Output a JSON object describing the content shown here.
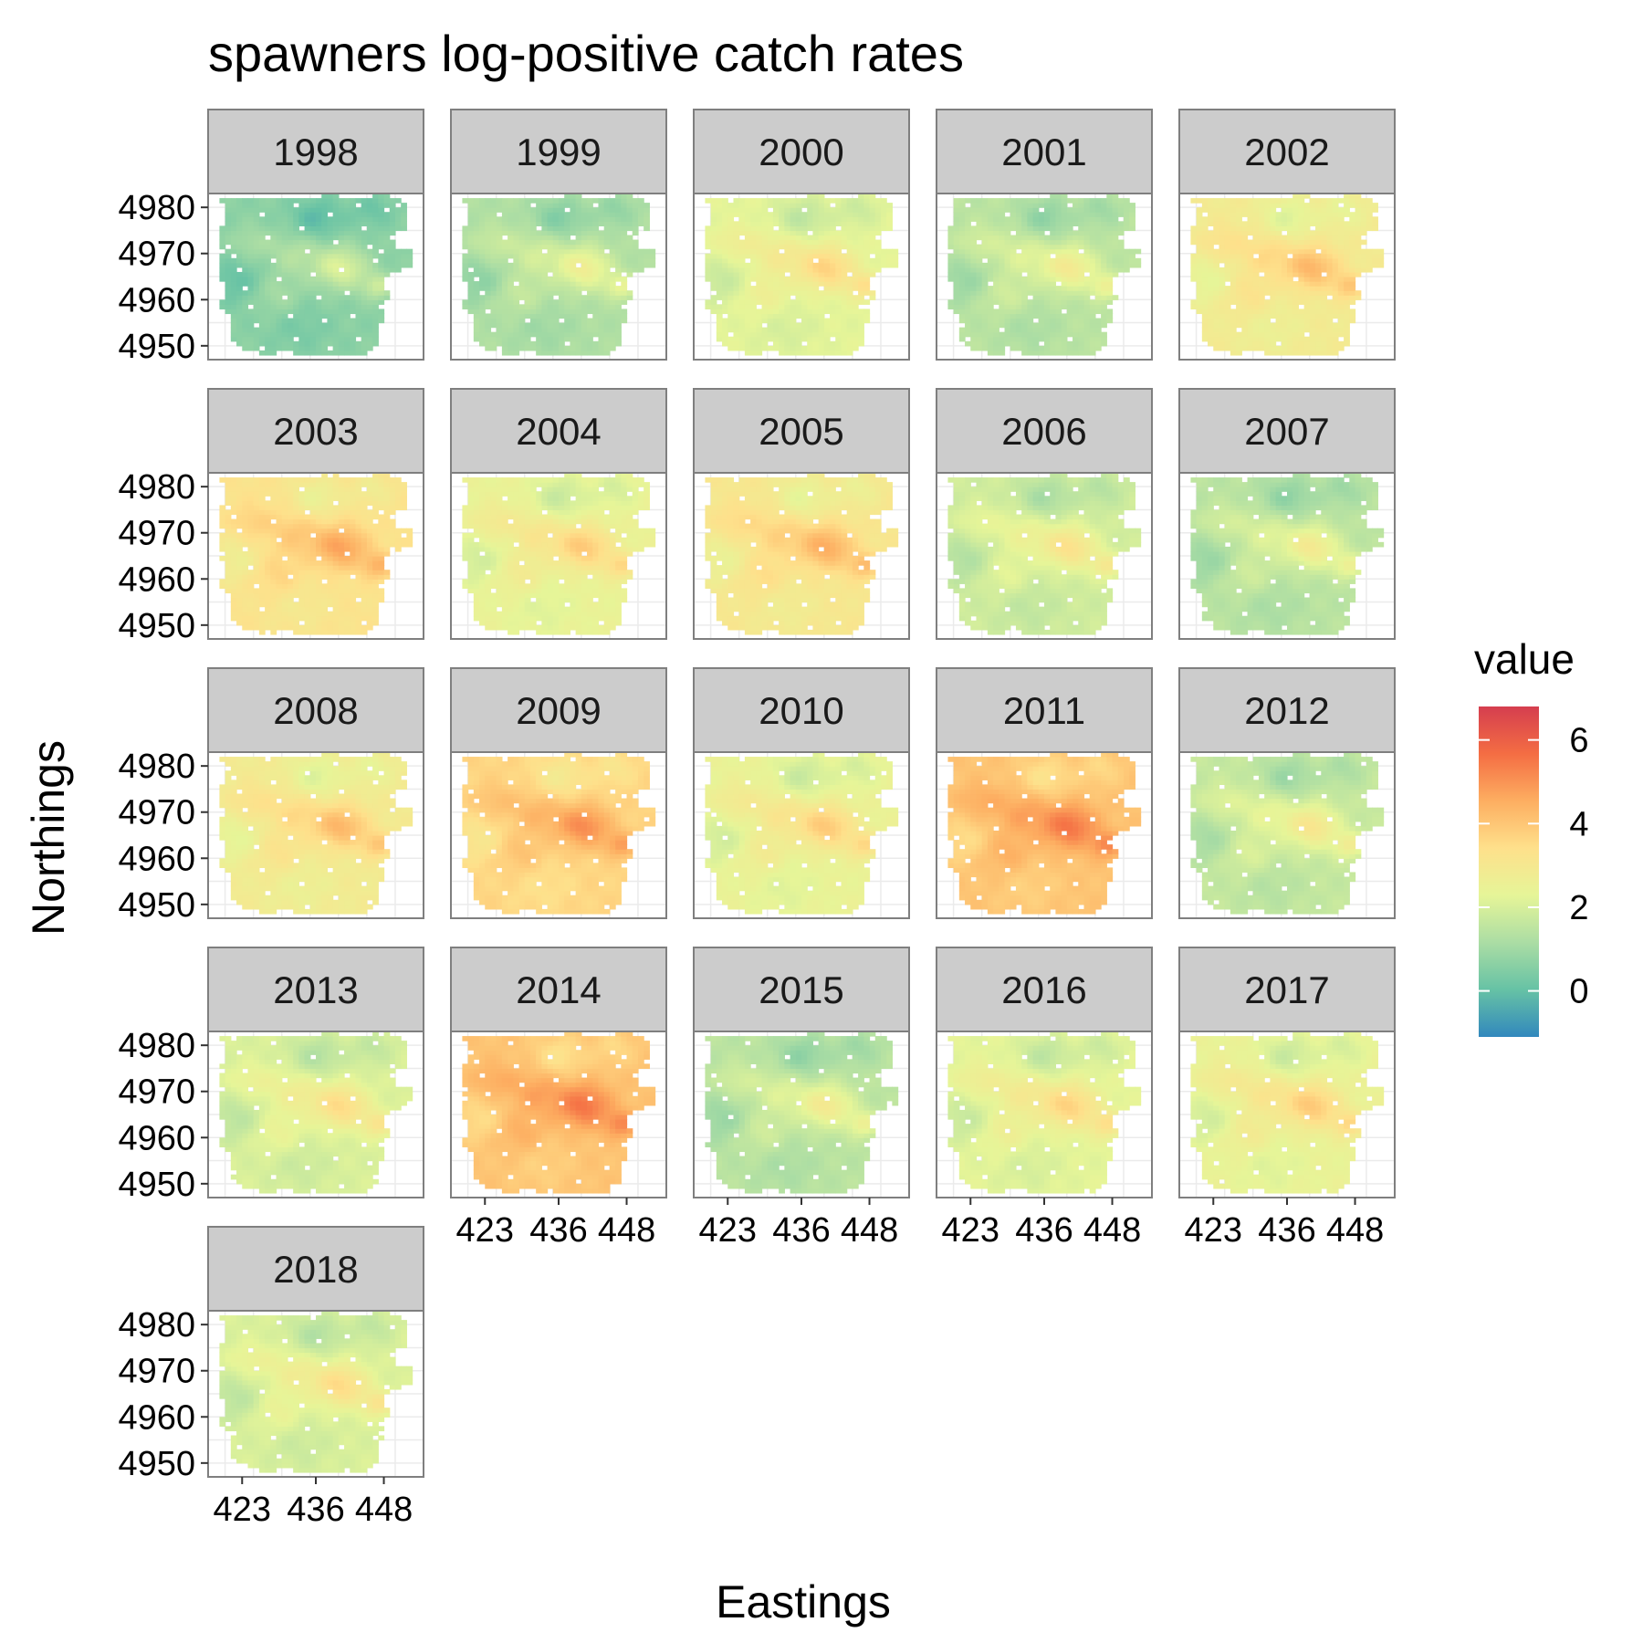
{
  "chart_data": {
    "type": "heatmap",
    "title": "spawners log-positive catch rates",
    "xlabel": "Eastings",
    "ylabel": "Northings",
    "facet_labels": [
      "1998",
      "1999",
      "2000",
      "2001",
      "2002",
      "2003",
      "2004",
      "2005",
      "2006",
      "2007",
      "2008",
      "2009",
      "2010",
      "2011",
      "2012",
      "2013",
      "2014",
      "2015",
      "2016",
      "2017",
      "2018"
    ],
    "approx_mean_value": [
      1.2,
      1.8,
      2.8,
      2.0,
      3.4,
      3.8,
      3.0,
      3.6,
      2.4,
      2.0,
      3.4,
      4.2,
      3.0,
      4.6,
      2.2,
      2.6,
      4.6,
      2.0,
      2.8,
      3.0,
      2.6
    ],
    "x_ticks": [
      "423",
      "436",
      "448"
    ],
    "y_ticks": [
      "4950",
      "4960",
      "4970",
      "4980"
    ],
    "xlim": [
      417,
      455
    ],
    "ylim": [
      4947,
      4983
    ],
    "legend": {
      "title": "value",
      "breaks": [
        "0",
        "2",
        "4",
        "6"
      ],
      "range": [
        -1.1,
        6.8
      ],
      "palette": [
        "#3288bd",
        "#66c2a5",
        "#abdda4",
        "#e6f598",
        "#fee08b",
        "#fdae61",
        "#f46d43",
        "#d53e4f"
      ],
      "position": "right"
    },
    "grid": true
  }
}
